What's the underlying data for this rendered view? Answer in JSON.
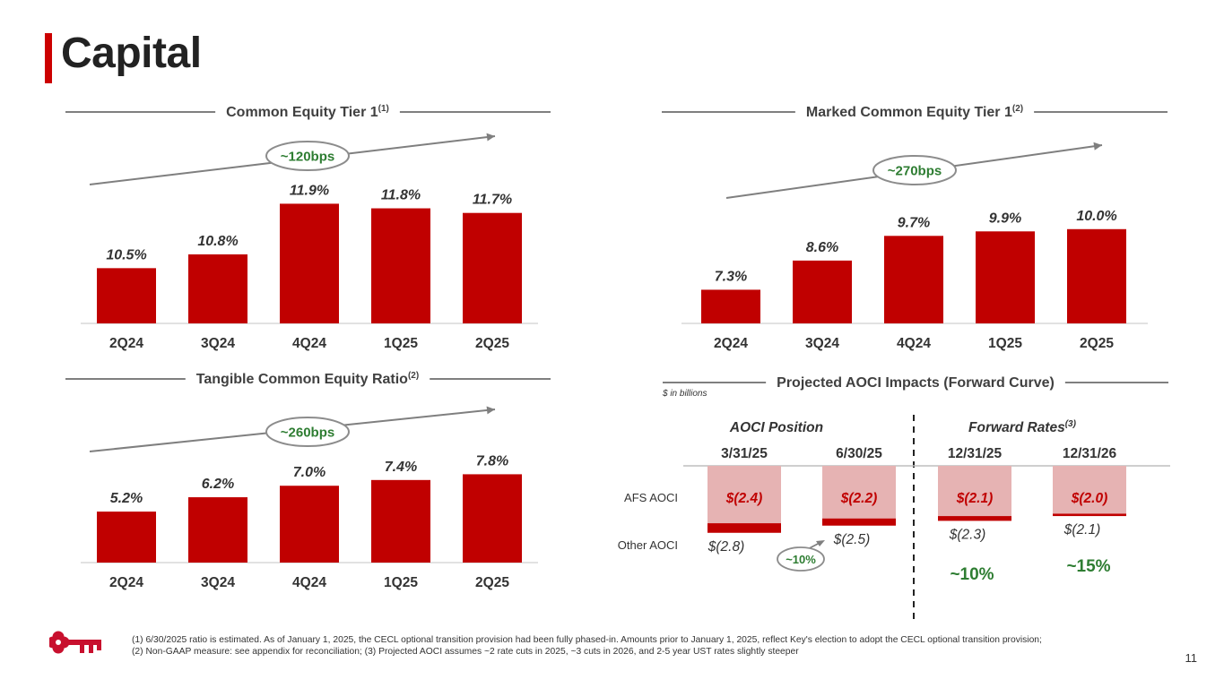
{
  "page": {
    "title": "Capital",
    "page_number": "11",
    "units_note": "$ in billions",
    "footnotes": [
      "(1) 6/30/2025 ratio is estimated.  As of January 1, 2025, the CECL optional transition provision had been fully phased-in. Amounts prior to January 1, 2025, reflect Key's election to adopt the CECL optional transition provision;",
      "(2) Non-GAAP measure: see appendix for reconciliation; (3) Projected AOCI assumes ~2 rate cuts in 2025, ~3 cuts in 2026, and 2-5 year UST rates slightly steeper"
    ],
    "colors": {
      "bar": "#c00000",
      "light_bar": "#e6b3b3",
      "accent_green": "#2e7d32",
      "title_accent": "#cc0000"
    }
  },
  "chart_data": [
    {
      "type": "bar",
      "title": "Common Equity Tier 1",
      "title_superscript": "(1)",
      "categories": [
        "2Q24",
        "3Q24",
        "4Q24",
        "1Q25",
        "2Q25"
      ],
      "values": [
        10.5,
        10.8,
        11.9,
        11.8,
        11.7
      ],
      "labels": [
        "10.5%",
        "10.8%",
        "11.9%",
        "11.8%",
        "11.7%"
      ],
      "ylim": [
        9.3,
        12.2
      ],
      "annotation": "~120bps"
    },
    {
      "type": "bar",
      "title": "Marked Common Equity Tier 1",
      "title_superscript": "(2)",
      "categories": [
        "2Q24",
        "3Q24",
        "4Q24",
        "1Q25",
        "2Q25"
      ],
      "values": [
        7.3,
        8.6,
        9.7,
        9.9,
        10.0
      ],
      "labels": [
        "7.3%",
        "8.6%",
        "9.7%",
        "9.9%",
        "10.0%"
      ],
      "ylim": [
        5.8,
        10.75
      ],
      "annotation": "~270bps"
    },
    {
      "type": "bar",
      "title": "Tangible Common Equity Ratio",
      "title_superscript": "(2)",
      "categories": [
        "2Q24",
        "3Q24",
        "4Q24",
        "1Q25",
        "2Q25"
      ],
      "values": [
        5.2,
        6.2,
        7.0,
        7.4,
        7.8
      ],
      "labels": [
        "5.2%",
        "6.2%",
        "7.0%",
        "7.4%",
        "7.8%"
      ],
      "ylim": [
        1.65,
        8.2
      ],
      "annotation": "~260bps"
    },
    {
      "type": "bar",
      "title": "Projected AOCI Impacts (Forward Curve)",
      "units": "$ in billions",
      "group_labels": [
        "AOCI Position",
        "Forward Rates"
      ],
      "group_superscript": "(3)",
      "categories": [
        "3/31/25",
        "6/30/25",
        "12/31/25",
        "12/31/26"
      ],
      "row_labels": [
        "AFS AOCI",
        "Other AOCI"
      ],
      "series": [
        {
          "name": "AFS AOCI",
          "values": [
            -2.4,
            -2.2,
            -2.1,
            -2.0
          ],
          "labels": [
            "$(2.4)",
            "$(2.2)",
            "$(2.1)",
            "$(2.0)"
          ]
        },
        {
          "name": "Other AOCI",
          "values": [
            -0.4,
            -0.3,
            -0.2,
            -0.1
          ]
        }
      ],
      "totals": [
        "$(2.8)",
        "$(2.5)",
        "$(2.3)",
        "$(2.1)"
      ],
      "change_annotations": [
        "~10%",
        "~10%",
        "~15%"
      ]
    }
  ]
}
